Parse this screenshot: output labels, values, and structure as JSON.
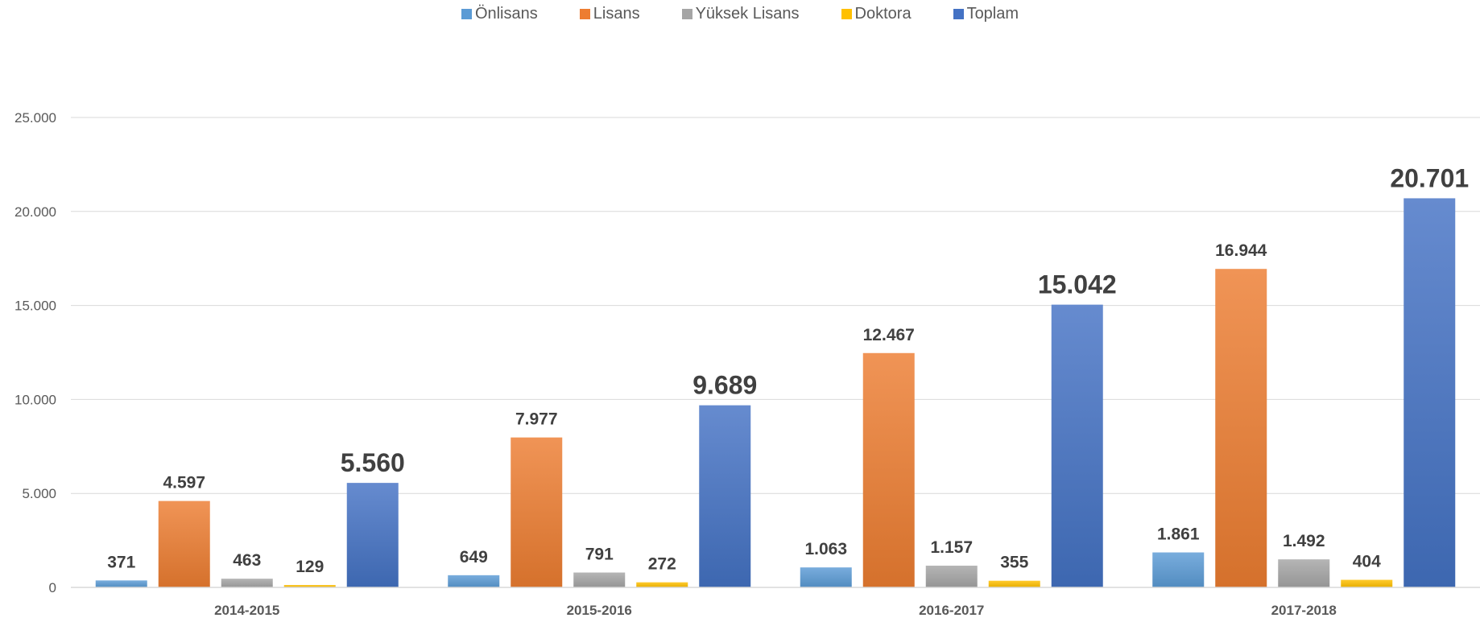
{
  "chart_data": {
    "type": "bar",
    "categories": [
      "2014-2015",
      "2015-2016",
      "2016-2017",
      "2017-2018"
    ],
    "series": [
      {
        "name": "Önlisans",
        "color": "#5B9BD5",
        "values": [
          371,
          649,
          1063,
          1861
        ],
        "labels": [
          "371",
          "649",
          "1.063",
          "1.861"
        ]
      },
      {
        "name": "Lisans",
        "color": "#ED7D31",
        "values": [
          4597,
          7977,
          12467,
          16944
        ],
        "labels": [
          "4.597",
          "7.977",
          "12.467",
          "16.944"
        ]
      },
      {
        "name": "Yüksek Lisans",
        "color": "#A5A5A5",
        "values": [
          463,
          791,
          1157,
          1492
        ],
        "labels": [
          "463",
          "791",
          "1.157",
          "1.492"
        ]
      },
      {
        "name": "Doktora",
        "color": "#FFC000",
        "values": [
          129,
          272,
          355,
          404
        ],
        "labels": [
          "129",
          "272",
          "355",
          "404"
        ]
      },
      {
        "name": "Toplam",
        "color": "#4472C4",
        "values": [
          5560,
          9689,
          15042,
          20701
        ],
        "labels": [
          "5.560",
          "9.689",
          "15.042",
          "20.701"
        ]
      }
    ],
    "yticks": [
      "0",
      "5.000",
      "10.000",
      "15.000",
      "20.000",
      "25.000"
    ],
    "ylim": [
      0,
      25000
    ],
    "grid": true,
    "legend_position": "top-center"
  }
}
